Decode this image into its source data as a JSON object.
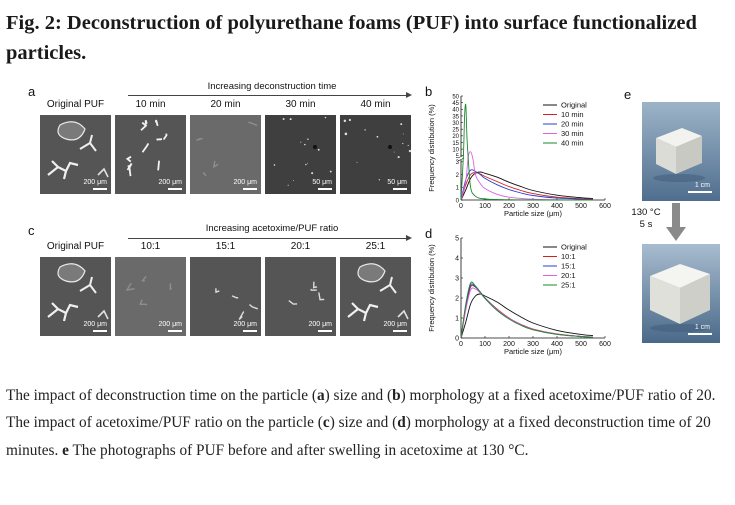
{
  "figure": {
    "title": "Fig. 2: Deconstruction of polyurethane foams (PUF) into surface functionalized particles.",
    "caption_html": "The impact of deconstruction time on the particle (<b>a</b>) size and (<b>b</b>) morphology at a fixed acetoxime/PUF ratio of 20. The impact of acetoxime/PUF ratio on the particle (<b>c</b>) size and (<b>d</b>) morphology at a fixed deconstruction time of 20 minutes. <b>e</b> The photographs of PUF before and after swelling in acetoxime at 130 °C."
  },
  "panel_a": {
    "letter": "a",
    "arrow_label": "Increasing deconstruction time",
    "images": [
      {
        "label": "Original PUF",
        "scale": "200 μm",
        "style": "orig"
      },
      {
        "label": "10 min",
        "scale": "200 μm",
        "style": "dense"
      },
      {
        "label": "20 min",
        "scale": "200 μm",
        "style": "faint"
      },
      {
        "label": "30 min",
        "scale": "50 μm",
        "style": "dots"
      },
      {
        "label": "40 min",
        "scale": "50 μm",
        "style": "dots"
      }
    ]
  },
  "panel_c": {
    "letter": "c",
    "arrow_label": "Increasing acetoxime/PUF ratio",
    "images": [
      {
        "label": "Original PUF",
        "scale": "200 μm",
        "style": "orig"
      },
      {
        "label": "10:1",
        "scale": "200 μm",
        "style": "faint"
      },
      {
        "label": "15:1",
        "scale": "200 μm",
        "style": "sparse"
      },
      {
        "label": "20:1",
        "scale": "200 μm",
        "style": "sparse"
      },
      {
        "label": "25:1",
        "scale": "200 μm",
        "style": "orig"
      }
    ]
  },
  "panel_e": {
    "letter": "e",
    "condition_temp": "130 °C",
    "condition_time": "5 s",
    "scale_top": "1 cm",
    "scale_bottom": "1 cm"
  },
  "chart_data": [
    {
      "panel": "b",
      "type": "line",
      "xlabel": "Particle size (μm)",
      "ylabel": "Frequency distribution (%)",
      "xlim": [
        0,
        600
      ],
      "xticks": [
        0,
        100,
        200,
        300,
        400,
        500,
        600
      ],
      "yticks_lower": [
        0,
        1,
        2,
        3
      ],
      "yticks_upper": [
        5,
        10,
        15,
        20,
        25,
        30,
        35,
        40,
        45,
        50
      ],
      "ylim": [
        0,
        50
      ],
      "axis_break": true,
      "legend_position": "top-right",
      "colors": {
        "Original": "#111111",
        "10 min": "#d42020",
        "20 min": "#2a3fd0",
        "30 min": "#e060e0",
        "40 min": "#1a8a2a"
      },
      "series": [
        {
          "name": "Original",
          "x": [
            0,
            20,
            40,
            60,
            80,
            100,
            150,
            200,
            250,
            300,
            400,
            500,
            550
          ],
          "y": [
            0,
            0.8,
            1.7,
            2.1,
            2.2,
            2.1,
            1.8,
            1.4,
            1.05,
            0.75,
            0.38,
            0.18,
            0.12
          ]
        },
        {
          "name": "10 min",
          "x": [
            0,
            20,
            40,
            60,
            80,
            100,
            150,
            200,
            250,
            300,
            400,
            500,
            550
          ],
          "y": [
            0,
            1.2,
            2.0,
            2.15,
            2.05,
            1.85,
            1.45,
            1.05,
            0.75,
            0.5,
            0.22,
            0.1,
            0.07
          ]
        },
        {
          "name": "20 min",
          "x": [
            0,
            20,
            40,
            60,
            80,
            100,
            150,
            200,
            250,
            300,
            400,
            500,
            550
          ],
          "y": [
            0,
            1.6,
            2.35,
            2.25,
            2.0,
            1.7,
            1.2,
            0.82,
            0.55,
            0.35,
            0.15,
            0.06,
            0.04
          ]
        },
        {
          "name": "30 min",
          "x": [
            0,
            20,
            30,
            40,
            50,
            60,
            80,
            100,
            150,
            200,
            300,
            400,
            500,
            550
          ],
          "y": [
            0,
            1.5,
            4.0,
            8.0,
            3.2,
            2.0,
            1.3,
            0.9,
            0.45,
            0.22,
            0.06,
            0.02,
            0.01,
            0
          ]
        },
        {
          "name": "40 min",
          "x": [
            0,
            10,
            15,
            20,
            25,
            30,
            40,
            60,
            100,
            200,
            300,
            400,
            500,
            550
          ],
          "y": [
            0,
            5,
            35,
            43,
            18,
            3.5,
            1.0,
            0.3,
            0.08,
            0.02,
            0.01,
            0,
            0,
            0
          ]
        }
      ]
    },
    {
      "panel": "d",
      "type": "line",
      "xlabel": "Particle size (μm)",
      "ylabel": "Frequency distribution (%)",
      "xlim": [
        0,
        600
      ],
      "xticks": [
        0,
        100,
        200,
        300,
        400,
        500,
        600
      ],
      "ylim": [
        0,
        5
      ],
      "yticks": [
        0,
        1,
        2,
        3,
        4,
        5
      ],
      "legend_position": "top-right",
      "colors": {
        "Original": "#111111",
        "10:1": "#d42020",
        "15:1": "#2a3fd0",
        "20:1": "#e060e0",
        "25:1": "#1a8a2a"
      },
      "series": [
        {
          "name": "Original",
          "x": [
            0,
            20,
            40,
            60,
            80,
            100,
            150,
            200,
            250,
            300,
            400,
            500,
            550
          ],
          "y": [
            0,
            0.8,
            1.7,
            2.1,
            2.2,
            2.1,
            1.8,
            1.4,
            1.05,
            0.75,
            0.38,
            0.18,
            0.12
          ]
        },
        {
          "name": "10:1",
          "x": [
            0,
            20,
            40,
            60,
            80,
            100,
            150,
            200,
            250,
            300,
            400,
            500,
            550
          ],
          "y": [
            0,
            1.5,
            2.55,
            2.55,
            2.3,
            2.0,
            1.45,
            1.0,
            0.68,
            0.45,
            0.2,
            0.08,
            0.05
          ]
        },
        {
          "name": "15:1",
          "x": [
            0,
            20,
            40,
            60,
            80,
            100,
            150,
            200,
            250,
            300,
            400,
            500,
            550
          ],
          "y": [
            0,
            1.6,
            2.65,
            2.55,
            2.3,
            2.0,
            1.42,
            0.98,
            0.66,
            0.43,
            0.19,
            0.08,
            0.05
          ]
        },
        {
          "name": "20:1",
          "x": [
            0,
            20,
            40,
            60,
            80,
            100,
            150,
            200,
            250,
            300,
            400,
            500,
            550
          ],
          "y": [
            0,
            1.4,
            2.4,
            2.45,
            2.25,
            1.98,
            1.42,
            0.98,
            0.66,
            0.43,
            0.19,
            0.08,
            0.05
          ]
        },
        {
          "name": "25:1",
          "x": [
            0,
            20,
            40,
            60,
            80,
            100,
            150,
            200,
            250,
            300,
            400,
            500,
            550
          ],
          "y": [
            0,
            1.7,
            2.75,
            2.6,
            2.3,
            1.98,
            1.38,
            0.95,
            0.63,
            0.41,
            0.18,
            0.07,
            0.04
          ]
        }
      ]
    }
  ]
}
